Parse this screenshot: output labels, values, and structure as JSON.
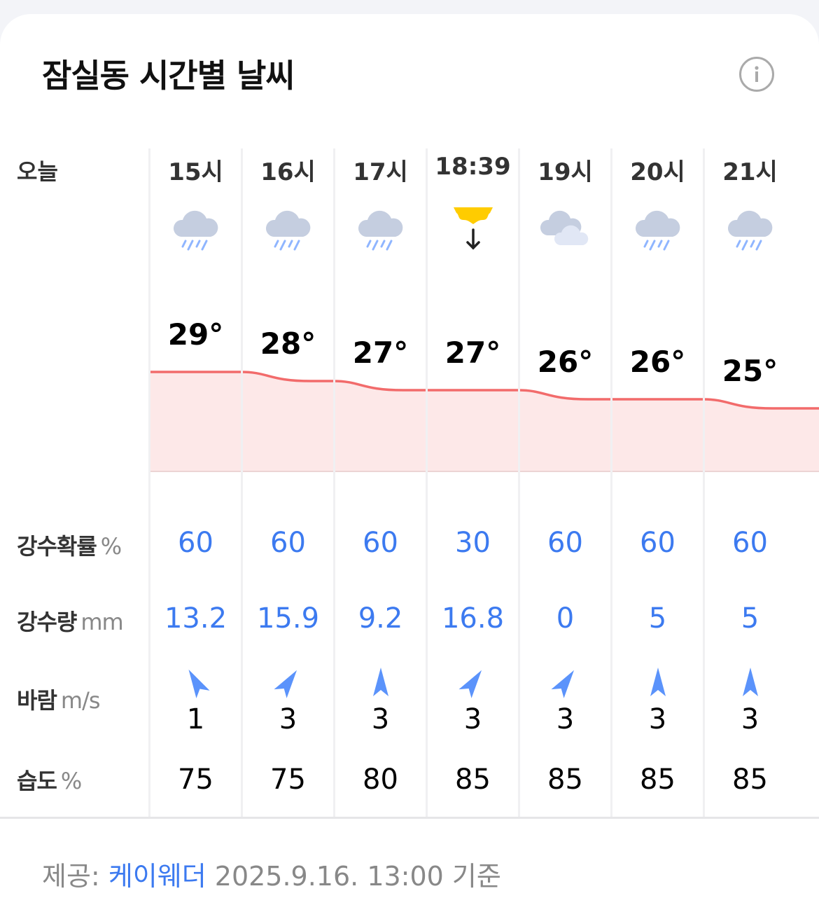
{
  "header": {
    "title": "잠실동 시간별 날씨",
    "info_icon": "info-circle-icon"
  },
  "today_label": "오늘",
  "row_labels": {
    "precip_prob": {
      "label": "강수확률",
      "unit": "%"
    },
    "precip_amount": {
      "label": "강수량",
      "unit": "mm"
    },
    "wind": {
      "label": "바람",
      "unit": "m/s"
    },
    "humidity": {
      "label": "습도",
      "unit": "%"
    }
  },
  "colors": {
    "accent": "#3c7af0",
    "temp_line": "#f26b6b",
    "temp_fill": "#fde8e8",
    "sunset": "#ffcc00",
    "wind_arrow": "#5b93fb"
  },
  "hours": [
    {
      "time": "15시",
      "icon": "rain-icon",
      "temp": 29,
      "temp_label": "29°",
      "prob": "60",
      "amount": "13.2",
      "wind_deg": -30,
      "wind_speed": "1",
      "humidity": "75"
    },
    {
      "time": "16시",
      "icon": "rain-icon",
      "temp": 28,
      "temp_label": "28°",
      "prob": "60",
      "amount": "15.9",
      "wind_deg": 35,
      "wind_speed": "3",
      "humidity": "75"
    },
    {
      "time": "17시",
      "icon": "rain-icon",
      "temp": 27,
      "temp_label": "27°",
      "prob": "60",
      "amount": "9.2",
      "wind_deg": 0,
      "wind_speed": "3",
      "humidity": "80"
    },
    {
      "time": "18:39",
      "icon": "sunset-icon",
      "temp": 27,
      "temp_label": "27°",
      "prob": "30",
      "amount": "16.8",
      "wind_deg": 35,
      "wind_speed": "3",
      "humidity": "85"
    },
    {
      "time": "19시",
      "icon": "cloudy-icon",
      "temp": 26,
      "temp_label": "26°",
      "prob": "60",
      "amount": "0",
      "wind_deg": 35,
      "wind_speed": "3",
      "humidity": "85"
    },
    {
      "time": "20시",
      "icon": "rain-icon",
      "temp": 26,
      "temp_label": "26°",
      "prob": "60",
      "amount": "5",
      "wind_deg": 0,
      "wind_speed": "3",
      "humidity": "85"
    },
    {
      "time": "21시",
      "icon": "rain-icon",
      "temp": 25,
      "temp_label": "25°",
      "prob": "60",
      "amount": "5",
      "wind_deg": 0,
      "wind_speed": "3",
      "humidity": "85"
    }
  ],
  "footer": {
    "prefix": "제공:",
    "provider": "케이웨더",
    "timestamp": "2025.9.16. 13:00 기준"
  }
}
